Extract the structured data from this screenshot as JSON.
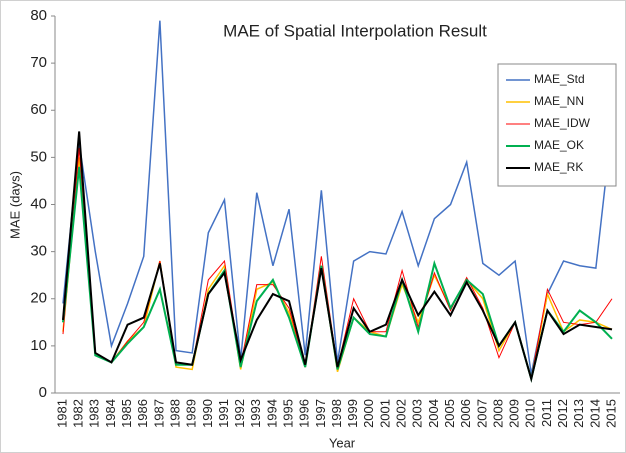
{
  "chart_data": {
    "type": "line",
    "title": "MAE of Spatial Interpolation Result",
    "x_label": "Year",
    "y_label": "MAE (days)",
    "categories": [
      "1981",
      "1982",
      "1983",
      "1984",
      "1985",
      "1986",
      "1987",
      "1988",
      "1989",
      "1990",
      "1991",
      "1992",
      "1993",
      "1994",
      "1995",
      "1996",
      "1997",
      "1998",
      "1999",
      "2000",
      "2001",
      "2002",
      "2003",
      "2004",
      "2005",
      "2006",
      "2007",
      "2008",
      "2009",
      "2010",
      "2011",
      "2012",
      "2013",
      "2014",
      "2015"
    ],
    "series": [
      {
        "name": "MAE_Std",
        "color": "#4472c4",
        "width": 1.5,
        "values": [
          19,
          53,
          30,
          10,
          19,
          29,
          79,
          9,
          8.5,
          34,
          41,
          7,
          42.5,
          27,
          39,
          8,
          43,
          6.5,
          28,
          30,
          29.5,
          38.5,
          27,
          37,
          40,
          49,
          27.5,
          25,
          28,
          4,
          21,
          28,
          27,
          26.5,
          57
        ]
      },
      {
        "name": "MAE_NN",
        "color": "#ffc000",
        "width": 1.5,
        "values": [
          13,
          50,
          8.5,
          6.5,
          11,
          14,
          28,
          5.5,
          5,
          22,
          27,
          5,
          22,
          23.5,
          17,
          5.5,
          27,
          4.5,
          16,
          13,
          12,
          23,
          15,
          25,
          18,
          24,
          20,
          9,
          15,
          3,
          21,
          13,
          15.5,
          15,
          13.5
        ]
      },
      {
        "name": "MAE_IDW",
        "color": "#ff0000",
        "width": 1,
        "values": [
          12.5,
          52,
          8,
          6.5,
          11,
          15,
          28,
          6.5,
          6,
          24,
          28,
          6,
          23,
          23,
          18,
          5.5,
          29,
          5.5,
          20,
          13,
          13,
          26,
          14,
          25.5,
          17.5,
          24.5,
          18,
          7.5,
          15,
          3,
          22,
          15,
          14.5,
          15,
          20
        ]
      },
      {
        "name": "MAE_OK",
        "color": "#00b050",
        "width": 2,
        "values": [
          15,
          48,
          8,
          6.5,
          10.5,
          14,
          22,
          6,
          6,
          21,
          26,
          5.5,
          19.5,
          24,
          16,
          5.5,
          27,
          5,
          16,
          12.5,
          12,
          24,
          13,
          27.5,
          18,
          24,
          21,
          10,
          15,
          3,
          17.5,
          13,
          17.5,
          15,
          11.5
        ]
      },
      {
        "name": "MAE_RK",
        "color": "#000000",
        "width": 2,
        "values": [
          15.5,
          55.5,
          8.5,
          6.5,
          14.5,
          16,
          27.5,
          6.5,
          6,
          21,
          25.5,
          7,
          15.5,
          21,
          19.5,
          6,
          26.5,
          5.5,
          18,
          13,
          14.5,
          24,
          16.5,
          21.5,
          16.5,
          23.5,
          17.5,
          10,
          15,
          3,
          17.5,
          12.5,
          14.5,
          14,
          13.5
        ]
      }
    ],
    "ylim": [
      0,
      80
    ],
    "yticks": [
      0,
      10,
      20,
      30,
      40,
      50,
      60,
      70,
      80
    ],
    "grid": false
  }
}
